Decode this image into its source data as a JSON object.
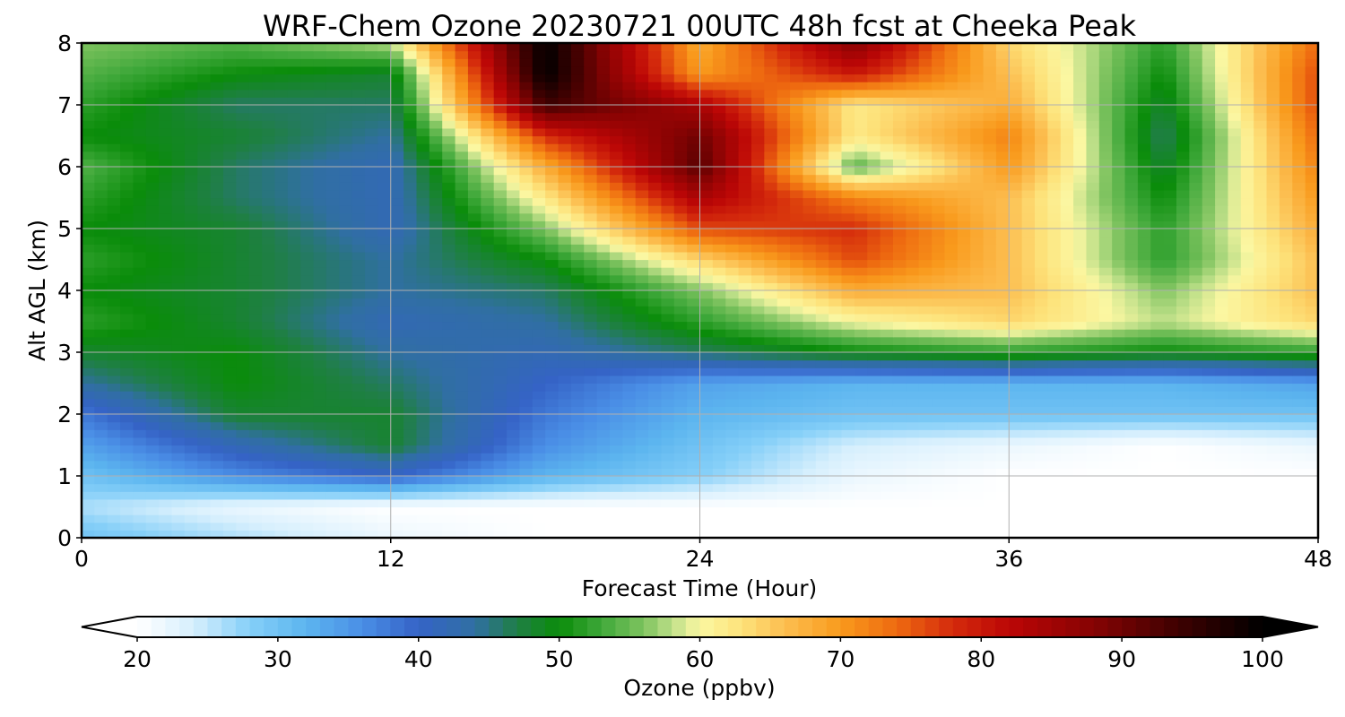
{
  "chart_data": {
    "type": "heatmap",
    "title": "WRF-Chem Ozone  20230721 00UTC 48h fcst at Cheeka Peak",
    "xlabel": "Forecast Time (Hour)",
    "ylabel": "Alt AGL (km)",
    "xlim": [
      0,
      48
    ],
    "ylim": [
      0,
      8
    ],
    "xticks": [
      "0",
      "12",
      "24",
      "36",
      "48"
    ],
    "yticks": [
      "0",
      "1",
      "2",
      "3",
      "4",
      "5",
      "6",
      "7",
      "8"
    ],
    "grid": true,
    "x": [
      0,
      6,
      12,
      18,
      24,
      30,
      36,
      42,
      48
    ],
    "y": [
      0,
      0.5,
      1,
      1.5,
      2,
      2.5,
      3,
      3.5,
      4,
      4.5,
      5,
      5.5,
      6,
      6.5,
      7,
      7.5,
      8
    ],
    "z": [
      [
        30,
        26,
        22,
        20,
        20,
        20,
        20,
        20,
        20
      ],
      [
        26,
        22,
        20,
        20,
        20,
        20,
        20,
        20,
        20
      ],
      [
        30,
        36,
        40,
        32,
        28,
        22,
        20,
        20,
        20
      ],
      [
        34,
        42,
        48,
        36,
        30,
        24,
        22,
        20,
        22
      ],
      [
        38,
        48,
        48,
        38,
        32,
        30,
        30,
        30,
        30
      ],
      [
        44,
        50,
        46,
        40,
        34,
        32,
        32,
        32,
        34
      ],
      [
        48,
        50,
        44,
        42,
        46,
        50,
        52,
        50,
        52
      ],
      [
        52,
        48,
        42,
        44,
        52,
        60,
        64,
        58,
        64
      ],
      [
        50,
        48,
        44,
        46,
        56,
        68,
        66,
        56,
        66
      ],
      [
        52,
        48,
        44,
        50,
        64,
        76,
        66,
        52,
        66
      ],
      [
        50,
        48,
        42,
        56,
        76,
        78,
        66,
        52,
        68
      ],
      [
        52,
        46,
        42,
        62,
        84,
        72,
        66,
        50,
        70
      ],
      [
        54,
        46,
        42,
        68,
        92,
        54,
        70,
        48,
        72
      ],
      [
        50,
        48,
        44,
        78,
        90,
        62,
        72,
        46,
        74
      ],
      [
        52,
        46,
        46,
        94,
        84,
        62,
        68,
        48,
        76
      ],
      [
        54,
        50,
        48,
        100,
        70,
        80,
        66,
        50,
        76
      ],
      [
        56,
        54,
        58,
        100,
        68,
        88,
        64,
        52,
        74
      ]
    ],
    "colorbar": {
      "label": "Ozone  (ppbv)",
      "min": 20,
      "max": 100,
      "extend": "both",
      "orientation": "horizontal",
      "ticks": [
        "20",
        "30",
        "40",
        "50",
        "60",
        "70",
        "80",
        "90",
        "100"
      ],
      "color_stops": [
        [
          20,
          "#ffffff"
        ],
        [
          24,
          "#d6effd"
        ],
        [
          28,
          "#85cff8"
        ],
        [
          32,
          "#5cb5ef"
        ],
        [
          36,
          "#4a8ee6"
        ],
        [
          40,
          "#3563c6"
        ],
        [
          44,
          "#306fa2"
        ],
        [
          47,
          "#1f7f45"
        ],
        [
          50,
          "#0a8c0a"
        ],
        [
          53,
          "#3fa83a"
        ],
        [
          56,
          "#7ec35f"
        ],
        [
          58,
          "#bddf88"
        ],
        [
          60,
          "#fbf7a2"
        ],
        [
          63,
          "#fde27a"
        ],
        [
          66,
          "#fcbe50"
        ],
        [
          70,
          "#f99a1c"
        ],
        [
          74,
          "#ee6a10"
        ],
        [
          78,
          "#d42a0c"
        ],
        [
          82,
          "#bb0606"
        ],
        [
          88,
          "#860303"
        ],
        [
          94,
          "#3e0101"
        ],
        [
          100,
          "#000000"
        ]
      ]
    }
  }
}
